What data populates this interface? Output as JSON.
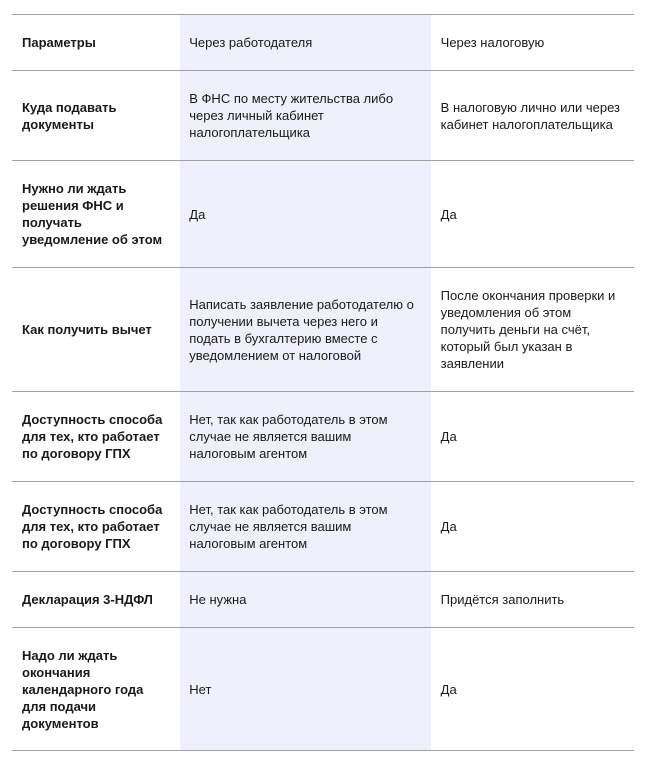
{
  "table": {
    "header": [
      "Параметры",
      "Через работодателя",
      "Через налоговую"
    ],
    "rows": [
      [
        "Куда подавать документы",
        "В ФНС по месту жительства либо через личный кабинет налогоплательщика",
        "В налоговую лично или через кабинет налогоплательщика"
      ],
      [
        "Нужно ли ждать решения ФНС и получать уведомление об этом",
        "Да",
        "Да"
      ],
      [
        "Как получить вычет",
        "Написать заявление работодателю о получении вычета через него и подать в бухгалтерию вместе с уведомлением от налоговой",
        "После окончания проверки и уведомления об этом получить деньги на счёт, который был указан в заявлении"
      ],
      [
        "Доступность способа для тех, кто работает по договору ГПХ",
        "Нет, так как работодатель в этом случае не является вашим налоговым агентом",
        "Да"
      ],
      [
        "Доступность способа для тех, кто работает по договору ГПХ",
        "Нет, так как работодатель в этом случае не является вашим налоговым агентом",
        "Да"
      ],
      [
        "Декларация 3-НДФЛ",
        "Не нужна",
        "Придётся заполнить"
      ],
      [
        "Надо ли ждать окончания календарного года для подачи документов",
        "Нет",
        "Да"
      ]
    ]
  }
}
